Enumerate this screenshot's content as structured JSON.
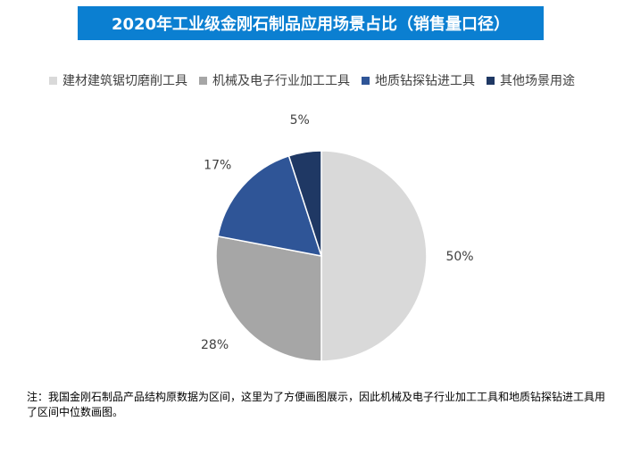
{
  "chart_data": {
    "type": "pie",
    "title": "2020年工业级金刚石制品应用场景占比（销售量口径）",
    "categories": [
      "建材建筑锯切磨削工具",
      "机械及电子行业加工工具",
      "地质钻探钻进工具",
      "其他场景用途"
    ],
    "values": [
      50,
      28,
      17,
      5
    ],
    "labels": [
      "50%",
      "28%",
      "17%",
      "5%"
    ],
    "colors": [
      "#d9d9d9",
      "#a6a6a6",
      "#2f5597",
      "#1f3864"
    ],
    "legend_position": "top"
  },
  "note": "注：我国金刚石制品产品结构原数据为区间，这里为了方便画图展示，因此机械及电子行业加工工具和地质钻探钻进工具用了区间中位数画图。"
}
